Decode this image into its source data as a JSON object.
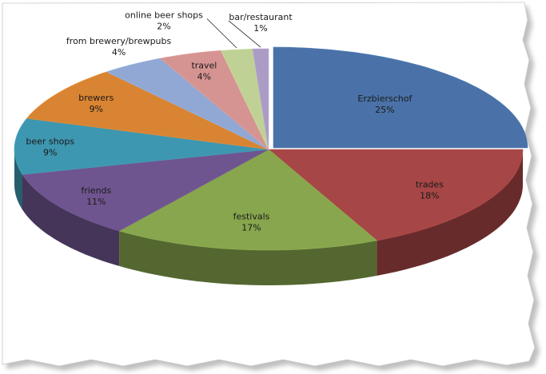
{
  "chart_data": {
    "type": "pie",
    "style": "3d-exploded-first-slice",
    "title": "",
    "slices": [
      {
        "label": "Erzbierschof",
        "value": 25,
        "value_label": "25%",
        "color": "#4a72a8"
      },
      {
        "label": "trades",
        "value": 18,
        "value_label": "18%",
        "color": "#a74646"
      },
      {
        "label": "festivals",
        "value": 17,
        "value_label": "17%",
        "color": "#87a64d"
      },
      {
        "label": "friends",
        "value": 11,
        "value_label": "11%",
        "color": "#6f558f"
      },
      {
        "label": "beer shops",
        "value": 9,
        "value_label": "9%",
        "color": "#3e97b0"
      },
      {
        "label": "brewers",
        "value": 9,
        "value_label": "9%",
        "color": "#d98432"
      },
      {
        "label": "from brewery/brewpubs",
        "value": 4,
        "value_label": "4%",
        "color": "#90a8d3"
      },
      {
        "label": "travel",
        "value": 4,
        "value_label": "4%",
        "color": "#d59492"
      },
      {
        "label": "online beer shops",
        "value": 2,
        "value_label": "2%",
        "color": "#bfd195"
      },
      {
        "label": "bar/restaurant",
        "value": 1,
        "value_label": "1%",
        "color": "#ab9cc5"
      }
    ]
  }
}
